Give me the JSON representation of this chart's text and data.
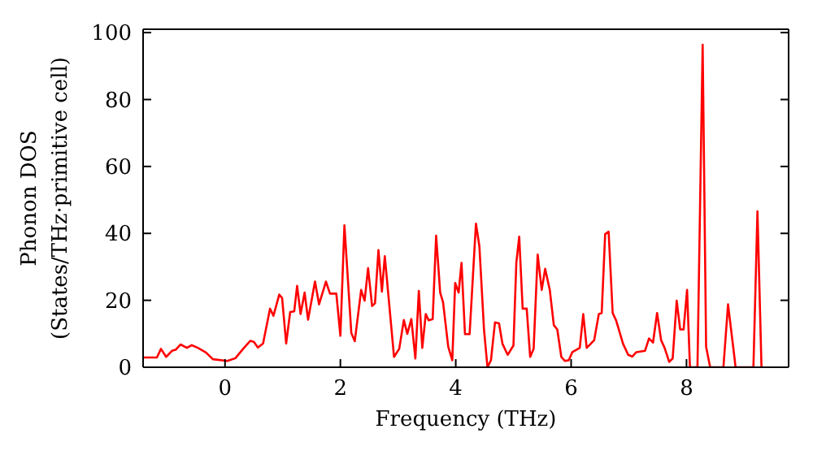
{
  "chart_data": {
    "type": "line",
    "xlabel": "Frequency (THz)",
    "ylabel": "Phonon DOS\n(States/THz·primitive cell)",
    "xlim": [
      -1.42,
      9.77
    ],
    "ylim": [
      0,
      101
    ],
    "xticks": [
      0,
      2,
      4,
      6,
      8
    ],
    "yticks": [
      0,
      20,
      40,
      60,
      80,
      100
    ],
    "marker": "none",
    "line_style": "solid",
    "series": [
      {
        "color": "#ff0000",
        "x": [
          -1.41,
          -1.18,
          -1.11,
          -1.02,
          -0.92,
          -0.85,
          -0.77,
          -0.66,
          -0.58,
          -0.47,
          -0.33,
          -0.21,
          0.04,
          0.18,
          0.32,
          0.44,
          0.5,
          0.57,
          0.66,
          0.78,
          0.84,
          0.94,
          0.99,
          1.06,
          1.13,
          1.2,
          1.25,
          1.31,
          1.38,
          1.44,
          1.56,
          1.63,
          1.75,
          1.82,
          1.93,
          2.0,
          2.07,
          2.19,
          2.25,
          2.36,
          2.42,
          2.48,
          2.55,
          2.6,
          2.66,
          2.72,
          2.77,
          2.93,
          3.02,
          3.1,
          3.16,
          3.23,
          3.3,
          3.36,
          3.42,
          3.48,
          3.53,
          3.6,
          3.66,
          3.73,
          3.78,
          3.87,
          3.94,
          3.99,
          4.05,
          4.1,
          4.16,
          4.24,
          4.35,
          4.41,
          4.49,
          4.55,
          4.61,
          4.68,
          4.75,
          4.81,
          4.9,
          5.0,
          5.05,
          5.1,
          5.16,
          5.23,
          5.29,
          5.35,
          5.42,
          5.49,
          5.55,
          5.63,
          5.7,
          5.76,
          5.83,
          5.89,
          5.96,
          6.02,
          6.15,
          6.21,
          6.27,
          6.34,
          6.4,
          6.48,
          6.53,
          6.59,
          6.65,
          6.72,
          6.78,
          6.9,
          6.99,
          7.06,
          7.13,
          7.28,
          7.35,
          7.42,
          7.49,
          7.56,
          7.62,
          7.7,
          7.76,
          7.83,
          7.89,
          7.95,
          8.01,
          8.06,
          8.19,
          8.28,
          8.34,
          8.41,
          8.64,
          8.72,
          8.83,
          8.85,
          9.16,
          9.23,
          9.3
        ],
        "values": [
          2.9,
          2.9,
          5.5,
          3.1,
          4.9,
          5.3,
          6.8,
          5.8,
          6.6,
          5.8,
          4.4,
          2.4,
          1.9,
          2.7,
          5.6,
          7.9,
          7.6,
          5.9,
          7.1,
          17.5,
          15.4,
          21.7,
          20.7,
          7.1,
          16.5,
          16.7,
          24.3,
          15.9,
          22.3,
          14.2,
          25.6,
          18.8,
          25.6,
          22.0,
          22.0,
          9.4,
          42.4,
          10.2,
          7.8,
          23.1,
          19.9,
          29.6,
          18.3,
          19.1,
          35.0,
          22.6,
          33.2,
          3.1,
          5.5,
          14.1,
          10.0,
          14.4,
          2.6,
          22.8,
          5.8,
          15.9,
          14.0,
          14.4,
          39.3,
          22.3,
          19.4,
          6.1,
          2.1,
          25.2,
          22.3,
          31.2,
          9.9,
          9.9,
          42.9,
          36.1,
          11.2,
          0,
          2.1,
          13.4,
          13.1,
          7.0,
          3.7,
          6.5,
          31.2,
          39.0,
          17.5,
          17.5,
          3.1,
          5.5,
          33.7,
          23.1,
          29.4,
          23.1,
          12.6,
          11.3,
          3.1,
          1.9,
          2.1,
          4.5,
          5.8,
          15.9,
          5.8,
          7.0,
          8.1,
          15.9,
          16.2,
          39.8,
          40.5,
          16.2,
          14.0,
          7.0,
          3.7,
          3.2,
          4.5,
          4.9,
          8.6,
          7.4,
          16.2,
          8.1,
          5.8,
          1.6,
          2.6,
          19.9,
          11.3,
          11.3,
          23.1,
          0,
          0,
          96.4,
          6.1,
          0,
          0,
          18.8,
          3.1,
          0,
          0,
          46.6,
          0
        ]
      }
    ]
  }
}
